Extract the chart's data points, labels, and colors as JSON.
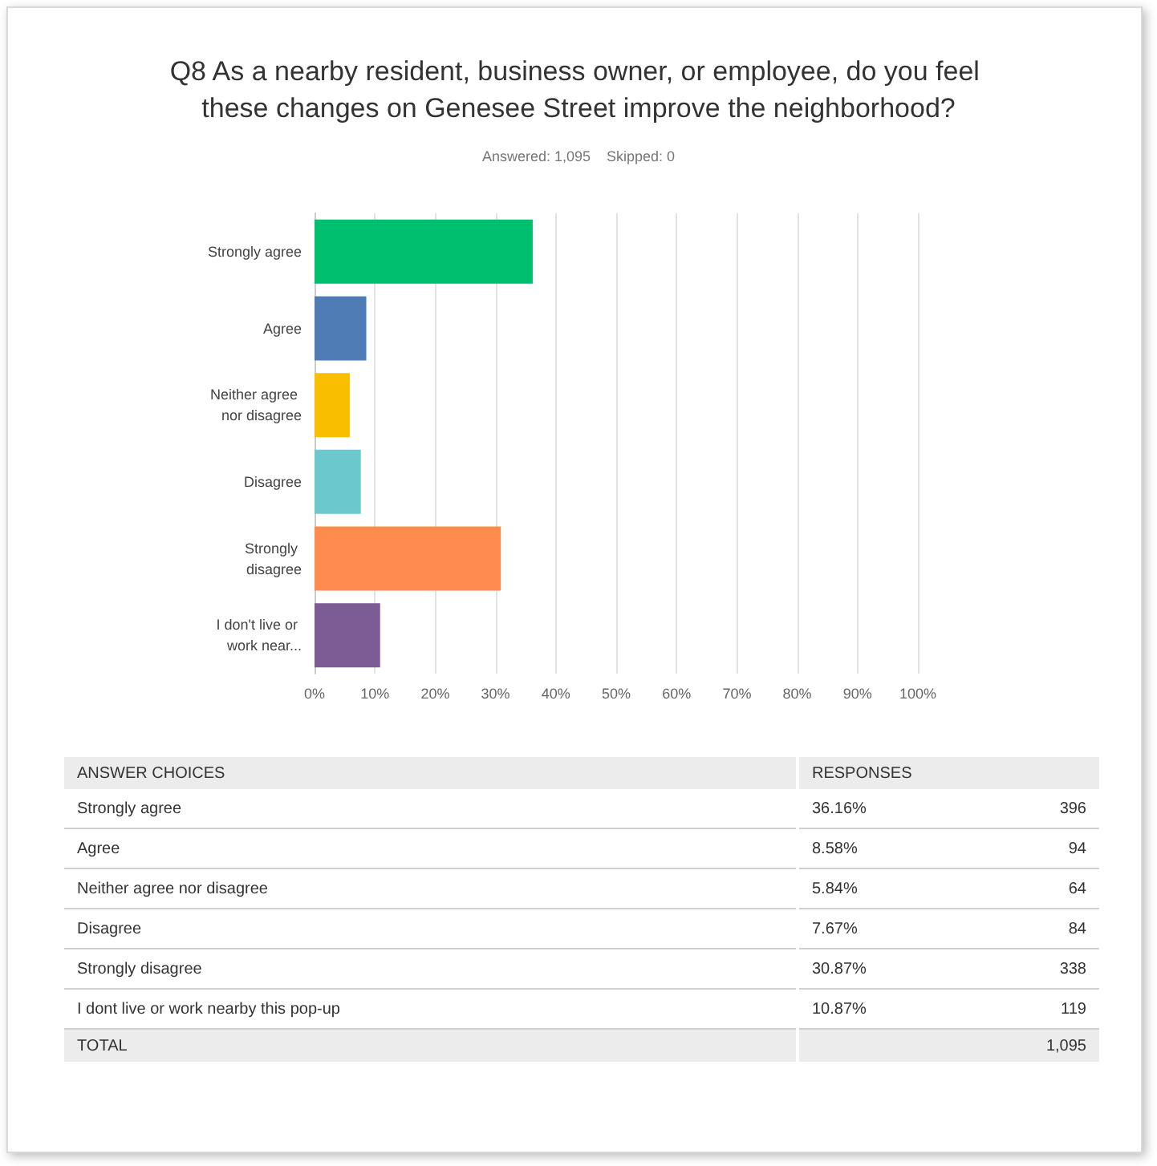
{
  "chart_data": [
    {
      "type": "bar",
      "orientation": "horizontal",
      "title": "Q8 As a nearby resident, business owner, or employee, do you feel these changes on Genesee Street improve the neighborhood?",
      "subtitle": "Answered: 1,095    Skipped: 0",
      "categories": [
        "Strongly agree",
        "Agree",
        "Neither agree nor disagree",
        "Disagree",
        "Strongly disagree",
        "I don't live or work near..."
      ],
      "values": [
        36.16,
        8.58,
        5.84,
        7.67,
        30.87,
        10.87
      ],
      "value_labels": [
        "36.16%",
        "8.58%",
        "5.84%",
        "7.67%",
        "30.87%",
        "10.87%"
      ],
      "colors": [
        "#00bf6f",
        "#507cb6",
        "#f9be00",
        "#6bc8cd",
        "#ff8b4f",
        "#7d5b94"
      ],
      "xlim": [
        0,
        100
      ],
      "xticks": [
        {
          "value": 0,
          "label": "0%"
        },
        {
          "value": 10,
          "label": "10%"
        },
        {
          "value": 20,
          "label": "20%"
        },
        {
          "value": 30,
          "label": "30%"
        },
        {
          "value": 40,
          "label": "40%"
        },
        {
          "value": 50,
          "label": "50%"
        },
        {
          "value": 60,
          "label": "60%"
        },
        {
          "value": 70,
          "label": "70%"
        },
        {
          "value": 80,
          "label": "80%"
        },
        {
          "value": 90,
          "label": "90%"
        },
        {
          "value": 100,
          "label": "100%"
        }
      ],
      "grid": "x"
    },
    {
      "type": "other",
      "categories": [
        "Strongly agree",
        "Agree",
        "Neither agree nor disagree",
        "Disagree",
        "Strongly disagree",
        "I dont live or work nearby this pop-up"
      ],
      "values": [
        396,
        94,
        64,
        84,
        338,
        119
      ],
      "data_labels": true,
      "annotations": [
        "ANSWER CHOICES",
        "RESPONSES",
        "TOTAL",
        "1,095"
      ]
    }
  ]
}
